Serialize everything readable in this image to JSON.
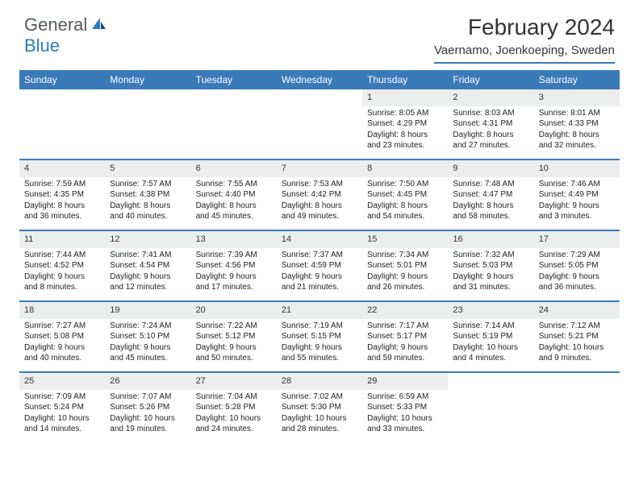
{
  "logo": {
    "text_general": "General",
    "text_blue": "Blue"
  },
  "title": "February 2024",
  "location": "Vaernamo, Joenkoeping, Sweden",
  "header_color": "#3a7ab8",
  "daynum_bg": "#eceded",
  "weekdays": [
    "Sunday",
    "Monday",
    "Tuesday",
    "Wednesday",
    "Thursday",
    "Friday",
    "Saturday"
  ],
  "weeks": [
    [
      {
        "n": "",
        "sr": "",
        "ss": "",
        "dl": ""
      },
      {
        "n": "",
        "sr": "",
        "ss": "",
        "dl": ""
      },
      {
        "n": "",
        "sr": "",
        "ss": "",
        "dl": ""
      },
      {
        "n": "",
        "sr": "",
        "ss": "",
        "dl": ""
      },
      {
        "n": "1",
        "sr": "Sunrise: 8:05 AM",
        "ss": "Sunset: 4:29 PM",
        "dl": "Daylight: 8 hours and 23 minutes."
      },
      {
        "n": "2",
        "sr": "Sunrise: 8:03 AM",
        "ss": "Sunset: 4:31 PM",
        "dl": "Daylight: 8 hours and 27 minutes."
      },
      {
        "n": "3",
        "sr": "Sunrise: 8:01 AM",
        "ss": "Sunset: 4:33 PM",
        "dl": "Daylight: 8 hours and 32 minutes."
      }
    ],
    [
      {
        "n": "4",
        "sr": "Sunrise: 7:59 AM",
        "ss": "Sunset: 4:35 PM",
        "dl": "Daylight: 8 hours and 36 minutes."
      },
      {
        "n": "5",
        "sr": "Sunrise: 7:57 AM",
        "ss": "Sunset: 4:38 PM",
        "dl": "Daylight: 8 hours and 40 minutes."
      },
      {
        "n": "6",
        "sr": "Sunrise: 7:55 AM",
        "ss": "Sunset: 4:40 PM",
        "dl": "Daylight: 8 hours and 45 minutes."
      },
      {
        "n": "7",
        "sr": "Sunrise: 7:53 AM",
        "ss": "Sunset: 4:42 PM",
        "dl": "Daylight: 8 hours and 49 minutes."
      },
      {
        "n": "8",
        "sr": "Sunrise: 7:50 AM",
        "ss": "Sunset: 4:45 PM",
        "dl": "Daylight: 8 hours and 54 minutes."
      },
      {
        "n": "9",
        "sr": "Sunrise: 7:48 AM",
        "ss": "Sunset: 4:47 PM",
        "dl": "Daylight: 8 hours and 58 minutes."
      },
      {
        "n": "10",
        "sr": "Sunrise: 7:46 AM",
        "ss": "Sunset: 4:49 PM",
        "dl": "Daylight: 9 hours and 3 minutes."
      }
    ],
    [
      {
        "n": "11",
        "sr": "Sunrise: 7:44 AM",
        "ss": "Sunset: 4:52 PM",
        "dl": "Daylight: 9 hours and 8 minutes."
      },
      {
        "n": "12",
        "sr": "Sunrise: 7:41 AM",
        "ss": "Sunset: 4:54 PM",
        "dl": "Daylight: 9 hours and 12 minutes."
      },
      {
        "n": "13",
        "sr": "Sunrise: 7:39 AM",
        "ss": "Sunset: 4:56 PM",
        "dl": "Daylight: 9 hours and 17 minutes."
      },
      {
        "n": "14",
        "sr": "Sunrise: 7:37 AM",
        "ss": "Sunset: 4:59 PM",
        "dl": "Daylight: 9 hours and 21 minutes."
      },
      {
        "n": "15",
        "sr": "Sunrise: 7:34 AM",
        "ss": "Sunset: 5:01 PM",
        "dl": "Daylight: 9 hours and 26 minutes."
      },
      {
        "n": "16",
        "sr": "Sunrise: 7:32 AM",
        "ss": "Sunset: 5:03 PM",
        "dl": "Daylight: 9 hours and 31 minutes."
      },
      {
        "n": "17",
        "sr": "Sunrise: 7:29 AM",
        "ss": "Sunset: 5:05 PM",
        "dl": "Daylight: 9 hours and 36 minutes."
      }
    ],
    [
      {
        "n": "18",
        "sr": "Sunrise: 7:27 AM",
        "ss": "Sunset: 5:08 PM",
        "dl": "Daylight: 9 hours and 40 minutes."
      },
      {
        "n": "19",
        "sr": "Sunrise: 7:24 AM",
        "ss": "Sunset: 5:10 PM",
        "dl": "Daylight: 9 hours and 45 minutes."
      },
      {
        "n": "20",
        "sr": "Sunrise: 7:22 AM",
        "ss": "Sunset: 5:12 PM",
        "dl": "Daylight: 9 hours and 50 minutes."
      },
      {
        "n": "21",
        "sr": "Sunrise: 7:19 AM",
        "ss": "Sunset: 5:15 PM",
        "dl": "Daylight: 9 hours and 55 minutes."
      },
      {
        "n": "22",
        "sr": "Sunrise: 7:17 AM",
        "ss": "Sunset: 5:17 PM",
        "dl": "Daylight: 9 hours and 59 minutes."
      },
      {
        "n": "23",
        "sr": "Sunrise: 7:14 AM",
        "ss": "Sunset: 5:19 PM",
        "dl": "Daylight: 10 hours and 4 minutes."
      },
      {
        "n": "24",
        "sr": "Sunrise: 7:12 AM",
        "ss": "Sunset: 5:21 PM",
        "dl": "Daylight: 10 hours and 9 minutes."
      }
    ],
    [
      {
        "n": "25",
        "sr": "Sunrise: 7:09 AM",
        "ss": "Sunset: 5:24 PM",
        "dl": "Daylight: 10 hours and 14 minutes."
      },
      {
        "n": "26",
        "sr": "Sunrise: 7:07 AM",
        "ss": "Sunset: 5:26 PM",
        "dl": "Daylight: 10 hours and 19 minutes."
      },
      {
        "n": "27",
        "sr": "Sunrise: 7:04 AM",
        "ss": "Sunset: 5:28 PM",
        "dl": "Daylight: 10 hours and 24 minutes."
      },
      {
        "n": "28",
        "sr": "Sunrise: 7:02 AM",
        "ss": "Sunset: 5:30 PM",
        "dl": "Daylight: 10 hours and 28 minutes."
      },
      {
        "n": "29",
        "sr": "Sunrise: 6:59 AM",
        "ss": "Sunset: 5:33 PM",
        "dl": "Daylight: 10 hours and 33 minutes."
      },
      {
        "n": "",
        "sr": "",
        "ss": "",
        "dl": ""
      },
      {
        "n": "",
        "sr": "",
        "ss": "",
        "dl": ""
      }
    ]
  ]
}
